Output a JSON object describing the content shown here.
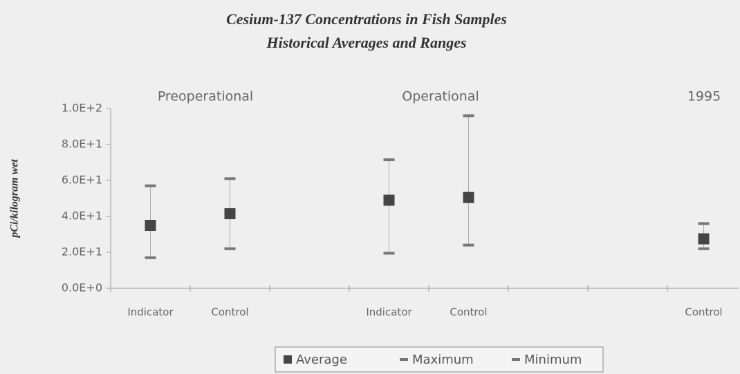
{
  "chart_data": {
    "type": "hilo",
    "title": "Cesium-137 Concentrations in Fish Samples",
    "subtitle": "Historical Averages and Ranges",
    "y_label": "pCi/kilogram wet",
    "annotations": [
      "Preoperational",
      "Operational",
      "1995"
    ],
    "categories": [
      "Indicator",
      "Control",
      null,
      "Indicator",
      "Control",
      null,
      null,
      "Control"
    ],
    "series": [
      {
        "name": "Average",
        "color": "#454545",
        "values": [
          35,
          41.5,
          null,
          49,
          50.5,
          null,
          null,
          27.5
        ]
      },
      {
        "name": "Maximum",
        "color": "#777777",
        "values": [
          57,
          61,
          null,
          71.5,
          96,
          null,
          null,
          36
        ]
      },
      {
        "name": "Minimum",
        "color": "#777777",
        "values": [
          17,
          22,
          null,
          19.5,
          24,
          null,
          null,
          22
        ]
      }
    ],
    "ylim": [
      0,
      100
    ],
    "yticks": [
      {
        "value": 0,
        "label": "0.0E+0"
      },
      {
        "value": 20,
        "label": "2.0E+1"
      },
      {
        "value": 40,
        "label": "4.0E+1"
      },
      {
        "value": 60,
        "label": "6.0E+1"
      },
      {
        "value": 80,
        "label": "8.0E+1"
      },
      {
        "value": 100,
        "label": "1.0E+2"
      }
    ]
  }
}
